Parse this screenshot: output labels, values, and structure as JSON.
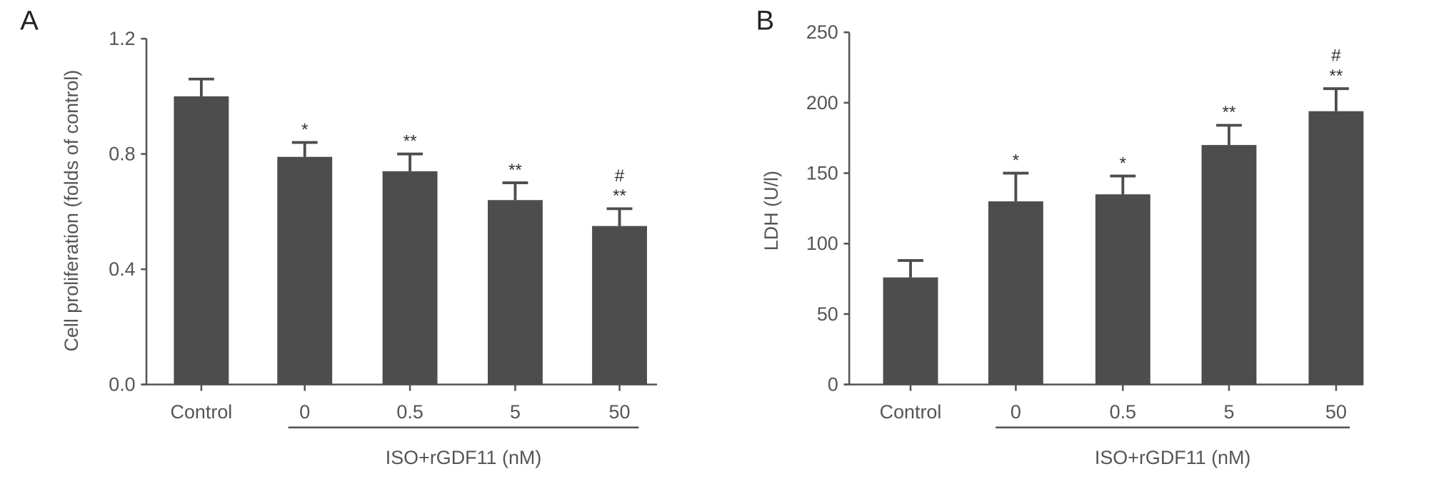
{
  "chart_data": [
    {
      "panel_label": "A",
      "type": "bar",
      "categories": [
        "Control",
        "0",
        "0.5",
        "5",
        "50"
      ],
      "values": [
        1.0,
        0.79,
        0.74,
        0.64,
        0.55
      ],
      "error_upper": [
        1.06,
        0.84,
        0.8,
        0.7,
        0.61
      ],
      "annotations": [
        "",
        "*",
        "**",
        "**",
        "#\n**"
      ],
      "ylabel": "Cell proliferation (folds of control)",
      "group_label": "ISO+rGDF11 (nM)",
      "ylim": [
        0,
        1.2
      ],
      "yticks": [
        "0.0",
        "0.4",
        "0.8",
        "1.2"
      ],
      "bar_color": "#4d4d4d",
      "grid": false
    },
    {
      "panel_label": "B",
      "type": "bar",
      "categories": [
        "Control",
        "0",
        "0.5",
        "5",
        "50"
      ],
      "values": [
        76,
        130,
        135,
        170,
        194
      ],
      "error_upper": [
        88,
        150,
        148,
        184,
        210
      ],
      "annotations": [
        "",
        "*",
        "*",
        "**",
        "#\n**"
      ],
      "ylabel": "LDH (U/l)",
      "group_label": "ISO+rGDF11 (nM)",
      "ylim": [
        0,
        250
      ],
      "yticks": [
        "0",
        "50",
        "100",
        "150",
        "200",
        "250"
      ],
      "bar_color": "#4d4d4d",
      "grid": false
    }
  ]
}
